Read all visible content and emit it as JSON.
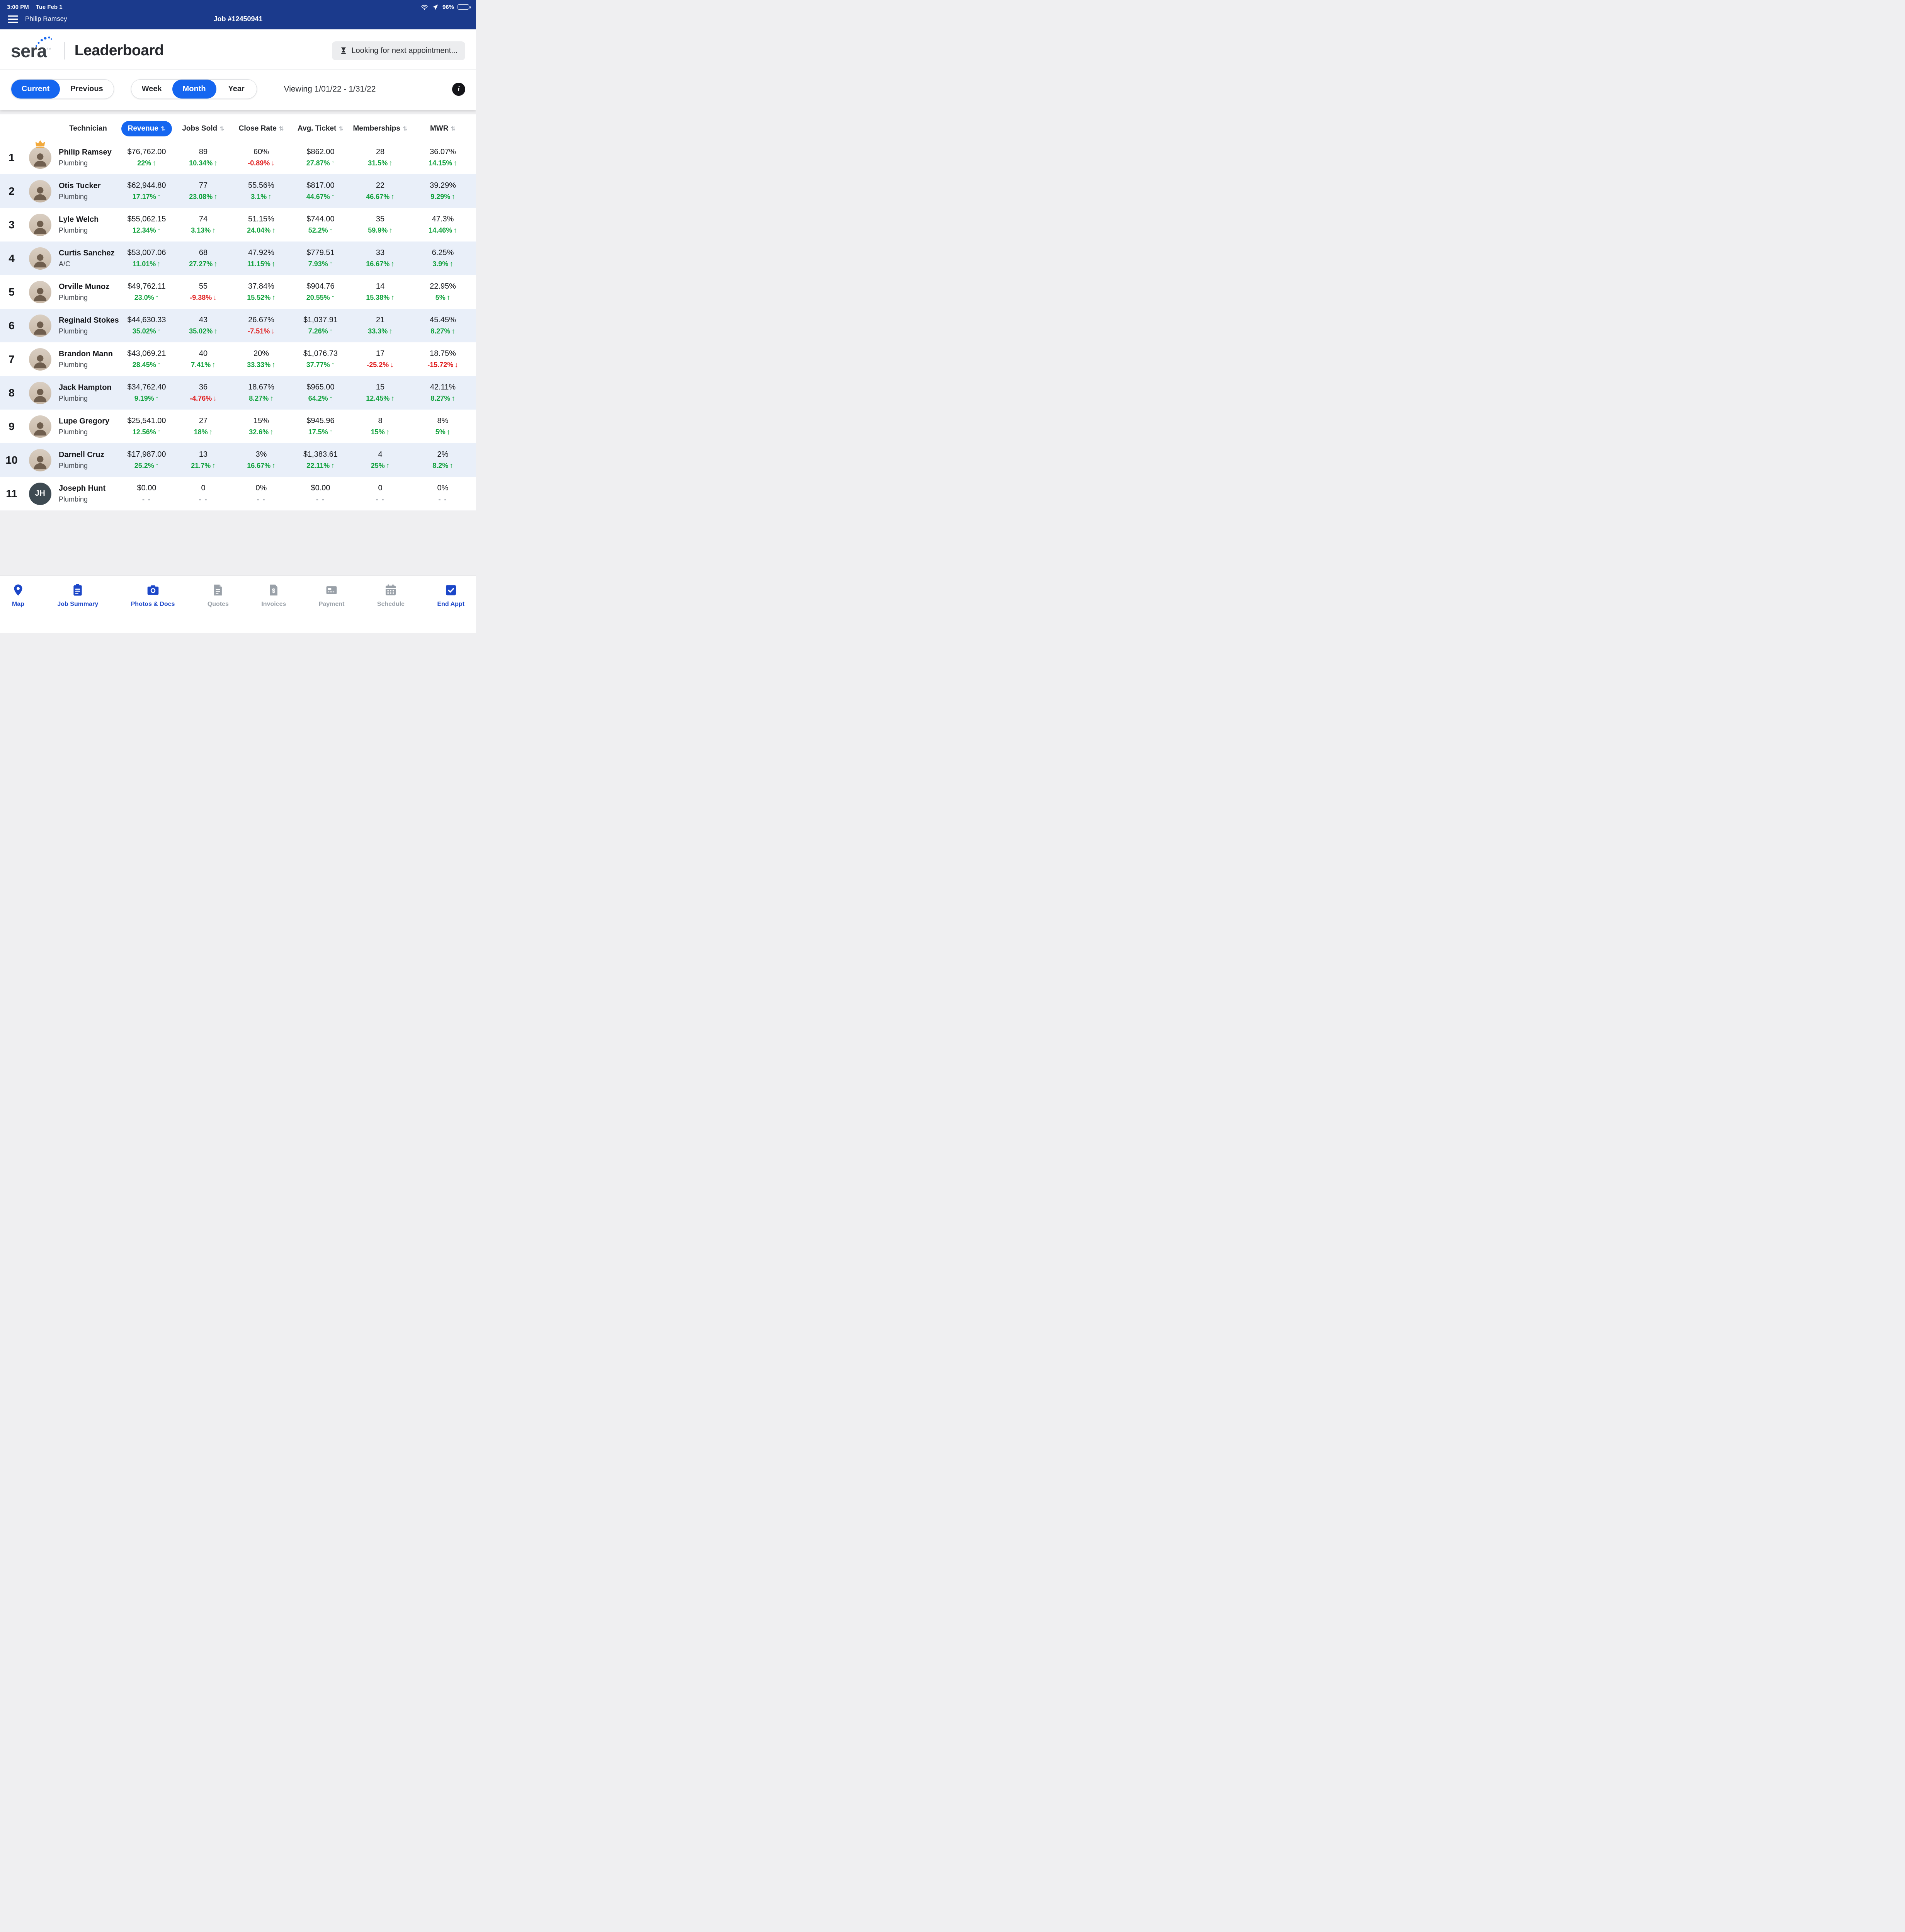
{
  "colors": {
    "navy_header": "#1B3A8C",
    "accent_blue": "#1566F0",
    "tab_active_blue": "#1B46C8",
    "tab_inactive_gray": "#99A0A8",
    "positive_green": "#10A13C",
    "negative_red": "#E01E1E",
    "alt_row_blue": "#E9EFF9"
  },
  "icons": {
    "sort": "⇅",
    "up_arrow": "↑",
    "down_arrow": "↓"
  },
  "status_bar": {
    "time": "3:00 PM",
    "date": "Tue Feb 1",
    "battery_percent": "96%"
  },
  "nav_bar": {
    "user_name": "Philip Ramsey",
    "job_title": "Job #12450941"
  },
  "header": {
    "logo_text": "sera",
    "title": "Leaderboard",
    "appointment_banner": "Looking for next appointment..."
  },
  "filters": {
    "period_toggle": [
      {
        "label": "Current",
        "active": true
      },
      {
        "label": "Previous",
        "active": false
      }
    ],
    "range_toggle": [
      {
        "label": "Week",
        "active": false
      },
      {
        "label": "Month",
        "active": true
      },
      {
        "label": "Year",
        "active": false
      }
    ],
    "viewing_label": "Viewing 1/01/22 - 1/31/22",
    "info_icon": "i"
  },
  "table": {
    "columns": [
      {
        "label": "Technician",
        "sortable": false,
        "highlight": false
      },
      {
        "label": "Revenue",
        "sortable": true,
        "highlight": true
      },
      {
        "label": "Jobs Sold",
        "sortable": true,
        "highlight": false
      },
      {
        "label": "Close Rate",
        "sortable": true,
        "highlight": false
      },
      {
        "label": "Avg. Ticket",
        "sortable": true,
        "highlight": false
      },
      {
        "label": "Memberships",
        "sortable": true,
        "highlight": false
      },
      {
        "label": "MWR",
        "sortable": true,
        "highlight": false
      }
    ],
    "rows": [
      {
        "rank": "1",
        "name": "Philip Ramsey",
        "trade": "Plumbing",
        "crown": true,
        "metrics": [
          {
            "value": "$76,762.00",
            "delta": "22%",
            "dir": "up"
          },
          {
            "value": "89",
            "delta": "10.34%",
            "dir": "up"
          },
          {
            "value": "60%",
            "delta": "-0.89%",
            "dir": "down"
          },
          {
            "value": "$862.00",
            "delta": "27.87%",
            "dir": "up"
          },
          {
            "value": "28",
            "delta": "31.5%",
            "dir": "up"
          },
          {
            "value": "36.07%",
            "delta": "14.15%",
            "dir": "up"
          }
        ]
      },
      {
        "rank": "2",
        "name": "Otis Tucker",
        "trade": "Plumbing",
        "crown": false,
        "metrics": [
          {
            "value": "$62,944.80",
            "delta": "17.17%",
            "dir": "up"
          },
          {
            "value": "77",
            "delta": "23.08%",
            "dir": "up"
          },
          {
            "value": "55.56%",
            "delta": "3.1%",
            "dir": "up"
          },
          {
            "value": "$817.00",
            "delta": "44.67%",
            "dir": "up"
          },
          {
            "value": "22",
            "delta": "46.67%",
            "dir": "up"
          },
          {
            "value": "39.29%",
            "delta": "9.29%",
            "dir": "up"
          }
        ]
      },
      {
        "rank": "3",
        "name": "Lyle Welch",
        "trade": "Plumbing",
        "crown": false,
        "metrics": [
          {
            "value": "$55,062.15",
            "delta": "12.34%",
            "dir": "up"
          },
          {
            "value": "74",
            "delta": "3.13%",
            "dir": "up"
          },
          {
            "value": "51.15%",
            "delta": "24.04%",
            "dir": "up"
          },
          {
            "value": "$744.00",
            "delta": "52.2%",
            "dir": "up"
          },
          {
            "value": "35",
            "delta": "59.9%",
            "dir": "up"
          },
          {
            "value": "47.3%",
            "delta": "14.46%",
            "dir": "up"
          }
        ]
      },
      {
        "rank": "4",
        "name": "Curtis Sanchez",
        "trade": "A/C",
        "crown": false,
        "metrics": [
          {
            "value": "$53,007.06",
            "delta": "11.01%",
            "dir": "up"
          },
          {
            "value": "68",
            "delta": "27.27%",
            "dir": "up"
          },
          {
            "value": "47.92%",
            "delta": "11.15%",
            "dir": "up"
          },
          {
            "value": "$779.51",
            "delta": "7.93%",
            "dir": "up"
          },
          {
            "value": "33",
            "delta": "16.67%",
            "dir": "up"
          },
          {
            "value": "6.25%",
            "delta": "3.9%",
            "dir": "up"
          }
        ]
      },
      {
        "rank": "5",
        "name": "Orville Munoz",
        "trade": "Plumbing",
        "crown": false,
        "metrics": [
          {
            "value": "$49,762.11",
            "delta": "23.0%",
            "dir": "up"
          },
          {
            "value": "55",
            "delta": "-9.38%",
            "dir": "down"
          },
          {
            "value": "37.84%",
            "delta": "15.52%",
            "dir": "up"
          },
          {
            "value": "$904.76",
            "delta": "20.55%",
            "dir": "up"
          },
          {
            "value": "14",
            "delta": "15.38%",
            "dir": "up"
          },
          {
            "value": "22.95%",
            "delta": "5%",
            "dir": "up"
          }
        ]
      },
      {
        "rank": "6",
        "name": "Reginald Stokes",
        "trade": "Plumbing",
        "crown": false,
        "metrics": [
          {
            "value": "$44,630.33",
            "delta": "35.02%",
            "dir": "up"
          },
          {
            "value": "43",
            "delta": "35.02%",
            "dir": "up"
          },
          {
            "value": "26.67%",
            "delta": "-7.51%",
            "dir": "down"
          },
          {
            "value": "$1,037.91",
            "delta": "7.26%",
            "dir": "up"
          },
          {
            "value": "21",
            "delta": "33.3%",
            "dir": "up"
          },
          {
            "value": "45.45%",
            "delta": "8.27%",
            "dir": "up"
          }
        ]
      },
      {
        "rank": "7",
        "name": "Brandon Mann",
        "trade": "Plumbing",
        "crown": false,
        "metrics": [
          {
            "value": "$43,069.21",
            "delta": "28.45%",
            "dir": "up"
          },
          {
            "value": "40",
            "delta": "7.41%",
            "dir": "up"
          },
          {
            "value": "20%",
            "delta": "33.33%",
            "dir": "up"
          },
          {
            "value": "$1,076.73",
            "delta": "37.77%",
            "dir": "up"
          },
          {
            "value": "17",
            "delta": "-25.2%",
            "dir": "down"
          },
          {
            "value": "18.75%",
            "delta": "-15.72%",
            "dir": "down"
          }
        ]
      },
      {
        "rank": "8",
        "name": "Jack Hampton",
        "trade": "Plumbing",
        "crown": false,
        "metrics": [
          {
            "value": "$34,762.40",
            "delta": "9.19%",
            "dir": "up"
          },
          {
            "value": "36",
            "delta": "-4.76%",
            "dir": "down"
          },
          {
            "value": "18.67%",
            "delta": "8.27%",
            "dir": "up"
          },
          {
            "value": "$965.00",
            "delta": "64.2%",
            "dir": "up"
          },
          {
            "value": "15",
            "delta": "12.45%",
            "dir": "up"
          },
          {
            "value": "42.11%",
            "delta": "8.27%",
            "dir": "up"
          }
        ]
      },
      {
        "rank": "9",
        "name": "Lupe Gregory",
        "trade": "Plumbing",
        "crown": false,
        "metrics": [
          {
            "value": "$25,541.00",
            "delta": "12.56%",
            "dir": "up"
          },
          {
            "value": "27",
            "delta": "18%",
            "dir": "up"
          },
          {
            "value": "15%",
            "delta": "32.6%",
            "dir": "up"
          },
          {
            "value": "$945.96",
            "delta": "17.5%",
            "dir": "up"
          },
          {
            "value": "8",
            "delta": "15%",
            "dir": "up"
          },
          {
            "value": "8%",
            "delta": "5%",
            "dir": "up"
          }
        ]
      },
      {
        "rank": "10",
        "name": "Darnell Cruz",
        "trade": "Plumbing",
        "crown": false,
        "metrics": [
          {
            "value": "$17,987.00",
            "delta": "25.2%",
            "dir": "up"
          },
          {
            "value": "13",
            "delta": "21.7%",
            "dir": "up"
          },
          {
            "value": "3%",
            "delta": "16.67%",
            "dir": "up"
          },
          {
            "value": "$1,383.61",
            "delta": "22.11%",
            "dir": "up"
          },
          {
            "value": "4",
            "delta": "25%",
            "dir": "up"
          },
          {
            "value": "2%",
            "delta": "8.2%",
            "dir": "up"
          }
        ]
      },
      {
        "rank": "11",
        "name": "Joseph Hunt",
        "trade": "Plumbing",
        "crown": false,
        "initials": "JH",
        "metrics": [
          {
            "value": "$0.00",
            "delta": "- -",
            "dir": "none"
          },
          {
            "value": "0",
            "delta": "- -",
            "dir": "none"
          },
          {
            "value": "0%",
            "delta": "- -",
            "dir": "none"
          },
          {
            "value": "$0.00",
            "delta": "- -",
            "dir": "none"
          },
          {
            "value": "0",
            "delta": "- -",
            "dir": "none"
          },
          {
            "value": "0%",
            "delta": "- -",
            "dir": "none"
          }
        ]
      }
    ]
  },
  "tab_bar": {
    "items": [
      {
        "label": "Map",
        "icon": "map-pin-icon",
        "active": true
      },
      {
        "label": "Job Summary",
        "icon": "clipboard-icon",
        "active": true
      },
      {
        "label": "Photos & Docs",
        "icon": "camera-icon",
        "active": true
      },
      {
        "label": "Quotes",
        "icon": "quote-doc-icon",
        "active": false
      },
      {
        "label": "Invoices",
        "icon": "invoice-doc-icon",
        "active": false
      },
      {
        "label": "Payment",
        "icon": "payment-terminal-icon",
        "active": false
      },
      {
        "label": "Schedule",
        "icon": "calendar-icon",
        "active": false
      },
      {
        "label": "End Appt",
        "icon": "calendar-check-icon",
        "active": true
      }
    ]
  }
}
